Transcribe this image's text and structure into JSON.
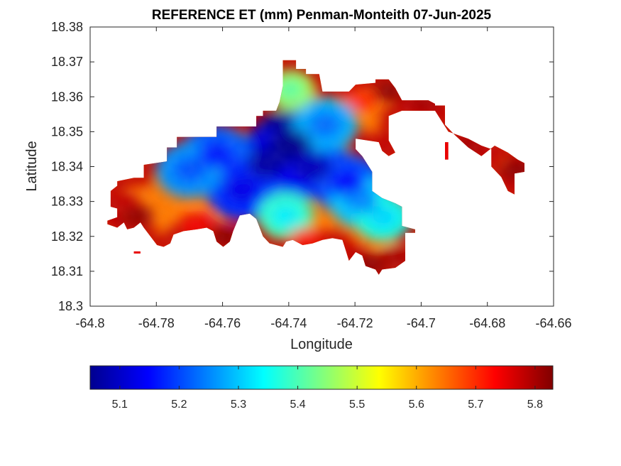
{
  "chart_data": {
    "type": "heatmap",
    "title": "REFERENCE ET (mm) Penman-Monteith 07-Jun-2025",
    "xlabel": "Longitude",
    "ylabel": "Latitude",
    "xlim": [
      -64.8,
      -64.66
    ],
    "ylim": [
      18.3,
      18.38
    ],
    "x_ticks": [
      -64.8,
      -64.78,
      -64.76,
      -64.74,
      -64.72,
      -64.7,
      -64.68,
      -64.66
    ],
    "x_tick_labels": [
      "-64.8",
      "-64.78",
      "-64.76",
      "-64.74",
      "-64.72",
      "-64.7",
      "-64.68",
      "-64.66"
    ],
    "y_ticks": [
      18.3,
      18.31,
      18.32,
      18.33,
      18.34,
      18.35,
      18.36,
      18.37,
      18.38
    ],
    "y_tick_labels": [
      "18.3",
      "18.31",
      "18.32",
      "18.33",
      "18.34",
      "18.35",
      "18.36",
      "18.37",
      "18.38"
    ],
    "grid": false,
    "colormap": "jet",
    "colorbar": {
      "location": "bottom",
      "clim": [
        5.05,
        5.83
      ],
      "ticks": [
        5.1,
        5.2,
        5.3,
        5.4,
        5.5,
        5.6,
        5.7,
        5.8
      ],
      "tick_labels": [
        "5.1",
        "5.2",
        "5.3",
        "5.4",
        "5.5",
        "5.6",
        "5.7",
        "5.8"
      ]
    },
    "outline": [
      [
        -64.7918,
        18.3358
      ],
      [
        -64.7868,
        18.3368
      ],
      [
        -64.7838,
        18.3368
      ],
      [
        -64.7838,
        18.3405
      ],
      [
        -64.7768,
        18.3415
      ],
      [
        -64.7768,
        18.3455
      ],
      [
        -64.7738,
        18.3455
      ],
      [
        -64.7738,
        18.3485
      ],
      [
        -64.7618,
        18.3485
      ],
      [
        -64.7618,
        18.3515
      ],
      [
        -64.7498,
        18.3515
      ],
      [
        -64.7498,
        18.3545
      ],
      [
        -64.7478,
        18.3545
      ],
      [
        -64.7478,
        18.356
      ],
      [
        -64.7438,
        18.356
      ],
      [
        -64.7428,
        18.3585
      ],
      [
        -64.7418,
        18.363
      ],
      [
        -64.7418,
        18.3705
      ],
      [
        -64.7378,
        18.3705
      ],
      [
        -64.7378,
        18.368
      ],
      [
        -64.7348,
        18.368
      ],
      [
        -64.7348,
        18.3665
      ],
      [
        -64.7308,
        18.3665
      ],
      [
        -64.7298,
        18.3615
      ],
      [
        -64.7218,
        18.3615
      ],
      [
        -64.7198,
        18.3635
      ],
      [
        -64.7138,
        18.364
      ],
      [
        -64.7138,
        18.365
      ],
      [
        -64.7098,
        18.365
      ],
      [
        -64.7078,
        18.3625
      ],
      [
        -64.7058,
        18.359
      ],
      [
        -64.6978,
        18.359
      ],
      [
        -64.6958,
        18.358
      ],
      [
        -64.6958,
        18.3575
      ],
      [
        -64.6928,
        18.3575
      ],
      [
        -64.6928,
        18.352
      ],
      [
        -64.6898,
        18.349
      ],
      [
        -64.6858,
        18.3455
      ],
      [
        -64.6818,
        18.343
      ],
      [
        -64.6778,
        18.346
      ],
      [
        -64.6738,
        18.344
      ],
      [
        -64.6708,
        18.342
      ],
      [
        -64.6688,
        18.341
      ],
      [
        -64.6688,
        18.3385
      ],
      [
        -64.6718,
        18.338
      ],
      [
        -64.6718,
        18.332
      ],
      [
        -64.6738,
        18.333
      ],
      [
        -64.6758,
        18.337
      ],
      [
        -64.6788,
        18.34
      ],
      [
        -64.6788,
        18.345
      ],
      [
        -64.6818,
        18.346
      ],
      [
        -64.6858,
        18.348
      ],
      [
        -64.6918,
        18.35
      ],
      [
        -64.6938,
        18.353
      ],
      [
        -64.6958,
        18.356
      ],
      [
        -64.7058,
        18.356
      ],
      [
        -64.7098,
        18.3545
      ],
      [
        -64.7098,
        18.3475
      ],
      [
        -64.7078,
        18.344
      ],
      [
        -64.7098,
        18.343
      ],
      [
        -64.7118,
        18.3445
      ],
      [
        -64.7128,
        18.347
      ],
      [
        -64.7198,
        18.348
      ],
      [
        -64.7198,
        18.345
      ],
      [
        -64.7178,
        18.343
      ],
      [
        -64.7148,
        18.3385
      ],
      [
        -64.7148,
        18.333
      ],
      [
        -64.7118,
        18.331
      ],
      [
        -64.7078,
        18.3295
      ],
      [
        -64.7058,
        18.3285
      ],
      [
        -64.7058,
        18.323
      ],
      [
        -64.7018,
        18.322
      ],
      [
        -64.7018,
        18.321
      ],
      [
        -64.7048,
        18.321
      ],
      [
        -64.7048,
        18.313
      ],
      [
        -64.7078,
        18.311
      ],
      [
        -64.7118,
        18.3105
      ],
      [
        -64.7128,
        18.309
      ],
      [
        -64.7138,
        18.3105
      ],
      [
        -64.7168,
        18.3115
      ],
      [
        -64.7178,
        18.3145
      ],
      [
        -64.7198,
        18.3155
      ],
      [
        -64.7218,
        18.313
      ],
      [
        -64.7228,
        18.316
      ],
      [
        -64.7238,
        18.319
      ],
      [
        -64.7268,
        18.3195
      ],
      [
        -64.7298,
        18.319
      ],
      [
        -64.7328,
        18.318
      ],
      [
        -64.7358,
        18.3175
      ],
      [
        -64.7388,
        18.319
      ],
      [
        -64.7408,
        18.3185
      ],
      [
        -64.7418,
        18.317
      ],
      [
        -64.7458,
        18.318
      ],
      [
        -64.7478,
        18.32
      ],
      [
        -64.7498,
        18.325
      ],
      [
        -64.7518,
        18.3265
      ],
      [
        -64.7548,
        18.326
      ],
      [
        -64.7568,
        18.3215
      ],
      [
        -64.7578,
        18.3185
      ],
      [
        -64.7598,
        18.317
      ],
      [
        -64.7618,
        18.3185
      ],
      [
        -64.7628,
        18.3215
      ],
      [
        -64.7648,
        18.3225
      ],
      [
        -64.7678,
        18.322
      ],
      [
        -64.7718,
        18.3215
      ],
      [
        -64.7748,
        18.3205
      ],
      [
        -64.7758,
        18.318
      ],
      [
        -64.7778,
        18.317
      ],
      [
        -64.7798,
        18.3175
      ],
      [
        -64.7818,
        18.32
      ],
      [
        -64.7838,
        18.3225
      ],
      [
        -64.7848,
        18.324
      ],
      [
        -64.7868,
        18.3225
      ],
      [
        -64.7888,
        18.322
      ],
      [
        -64.7898,
        18.324
      ],
      [
        -64.7918,
        18.3225
      ],
      [
        -64.7948,
        18.3235
      ],
      [
        -64.7948,
        18.3245
      ],
      [
        -64.7918,
        18.3255
      ],
      [
        -64.7918,
        18.328
      ],
      [
        -64.7938,
        18.3285
      ],
      [
        -64.7938,
        18.333
      ],
      [
        -64.7918,
        18.3345
      ]
    ],
    "outline_islets": [
      [
        -64.7868,
        18.3157,
        -64.7848,
        18.3152
      ],
      [
        -64.6928,
        18.347,
        -64.6918,
        18.342
      ]
    ],
    "lows": [
      {
        "lon": -64.7395,
        "lat": 18.346,
        "value": 5.06
      },
      {
        "lon": -64.7465,
        "lat": 18.341,
        "value": 5.12
      },
      {
        "lon": -64.733,
        "lat": 18.34,
        "value": 5.14
      },
      {
        "lon": -64.762,
        "lat": 18.3435,
        "value": 5.22
      },
      {
        "lon": -64.754,
        "lat": 18.3335,
        "value": 5.18
      },
      {
        "lon": -64.77,
        "lat": 18.339,
        "value": 5.26
      },
      {
        "lon": -64.729,
        "lat": 18.352,
        "value": 5.28
      },
      {
        "lon": -64.722,
        "lat": 18.335,
        "value": 5.2
      },
      {
        "lon": -64.718,
        "lat": 18.33,
        "value": 5.3
      },
      {
        "lon": -64.7115,
        "lat": 18.3255,
        "value": 5.36
      },
      {
        "lon": -64.7395,
        "lat": 18.362,
        "value": 5.46
      },
      {
        "lon": -64.741,
        "lat": 18.326,
        "value": 5.38
      }
    ],
    "highs": [
      {
        "lon": -64.786,
        "lat": 18.326,
        "value": 5.82
      },
      {
        "lon": -64.79,
        "lat": 18.33,
        "value": 5.78
      },
      {
        "lon": -64.759,
        "lat": 18.32,
        "value": 5.82
      },
      {
        "lon": -64.768,
        "lat": 18.3235,
        "value": 5.74
      },
      {
        "lon": -64.735,
        "lat": 18.3195,
        "value": 5.72
      },
      {
        "lon": -64.715,
        "lat": 18.312,
        "value": 5.82
      },
      {
        "lon": -64.708,
        "lat": 18.314,
        "value": 5.8
      },
      {
        "lon": -64.71,
        "lat": 18.3615,
        "value": 5.82
      },
      {
        "lon": -64.699,
        "lat": 18.3585,
        "value": 5.8
      },
      {
        "lon": -64.686,
        "lat": 18.346,
        "value": 5.8
      },
      {
        "lon": -64.671,
        "lat": 18.339,
        "value": 5.82
      },
      {
        "lon": -64.718,
        "lat": 18.359,
        "value": 5.7
      }
    ]
  }
}
